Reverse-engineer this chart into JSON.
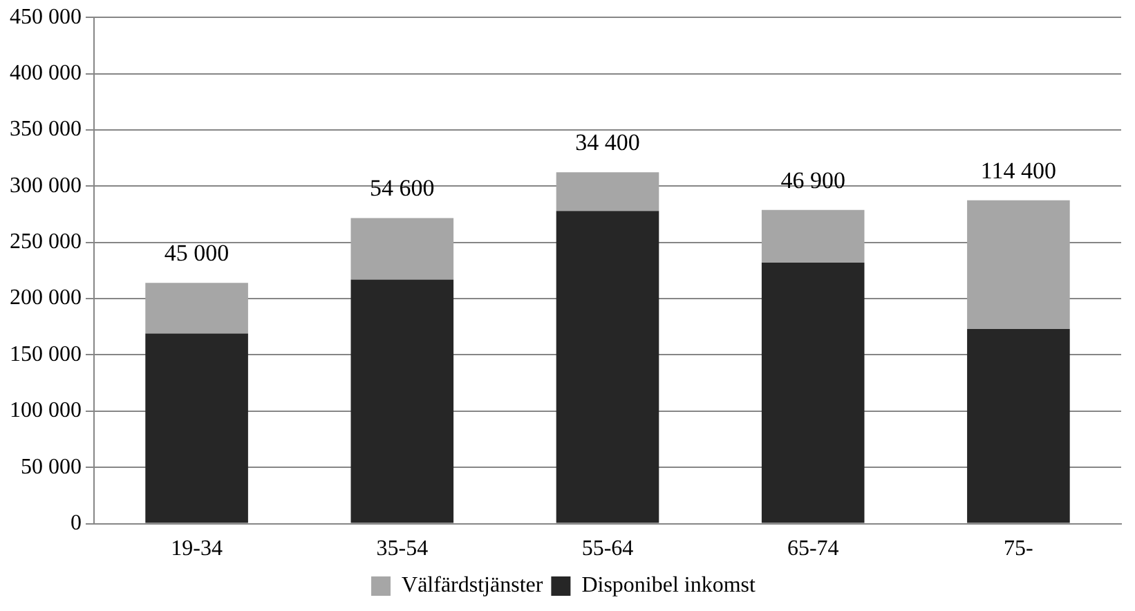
{
  "chart_data": {
    "type": "bar",
    "stacked": true,
    "categories": [
      "19-34",
      "35-54",
      "55-64",
      "65-74",
      "75-"
    ],
    "series": [
      {
        "name": "Disponibel inkomst",
        "color": "#262626",
        "values": [
          169000,
          217000,
          278000,
          232000,
          173000
        ]
      },
      {
        "name": "Välfärdstjänster",
        "color": "#a6a6a6",
        "values": [
          45000,
          54600,
          34400,
          46900,
          114400
        ],
        "value_labels": [
          "45 000",
          "54 600",
          "34 400",
          "46 900",
          "114 400"
        ]
      }
    ],
    "ylim": [
      0,
      450000
    ],
    "yticks": [
      {
        "value": 0,
        "label": "0"
      },
      {
        "value": 50000,
        "label": "50 000"
      },
      {
        "value": 100000,
        "label": "100 000"
      },
      {
        "value": 150000,
        "label": "150 000"
      },
      {
        "value": 200000,
        "label": "200 000"
      },
      {
        "value": 250000,
        "label": "250 000"
      },
      {
        "value": 300000,
        "label": "300 000"
      },
      {
        "value": 350000,
        "label": "350 000"
      },
      {
        "value": 400000,
        "label": "400 000"
      },
      {
        "value": 450000,
        "label": "450 000"
      }
    ],
    "grid": "y",
    "legend": "bottom"
  }
}
